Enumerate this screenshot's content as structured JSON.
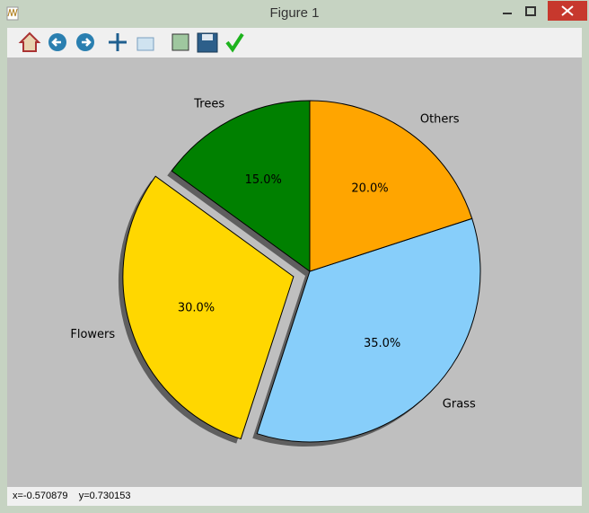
{
  "window": {
    "title": "Figure 1",
    "status": "x=-0.570879    y=0.730153"
  },
  "chart_data": {
    "type": "pie",
    "categories": [
      "Trees",
      "Flowers",
      "Grass",
      "Others"
    ],
    "values": [
      15,
      30,
      35,
      20
    ],
    "value_labels": [
      "15.0%",
      "30.0%",
      "35.0%",
      "20.0%"
    ],
    "colors": [
      "#008000",
      "#ffd700",
      "#87cefa",
      "#ffa500"
    ],
    "explode": [
      0,
      0.1,
      0,
      0
    ],
    "startangle": 90,
    "shadow": true
  }
}
